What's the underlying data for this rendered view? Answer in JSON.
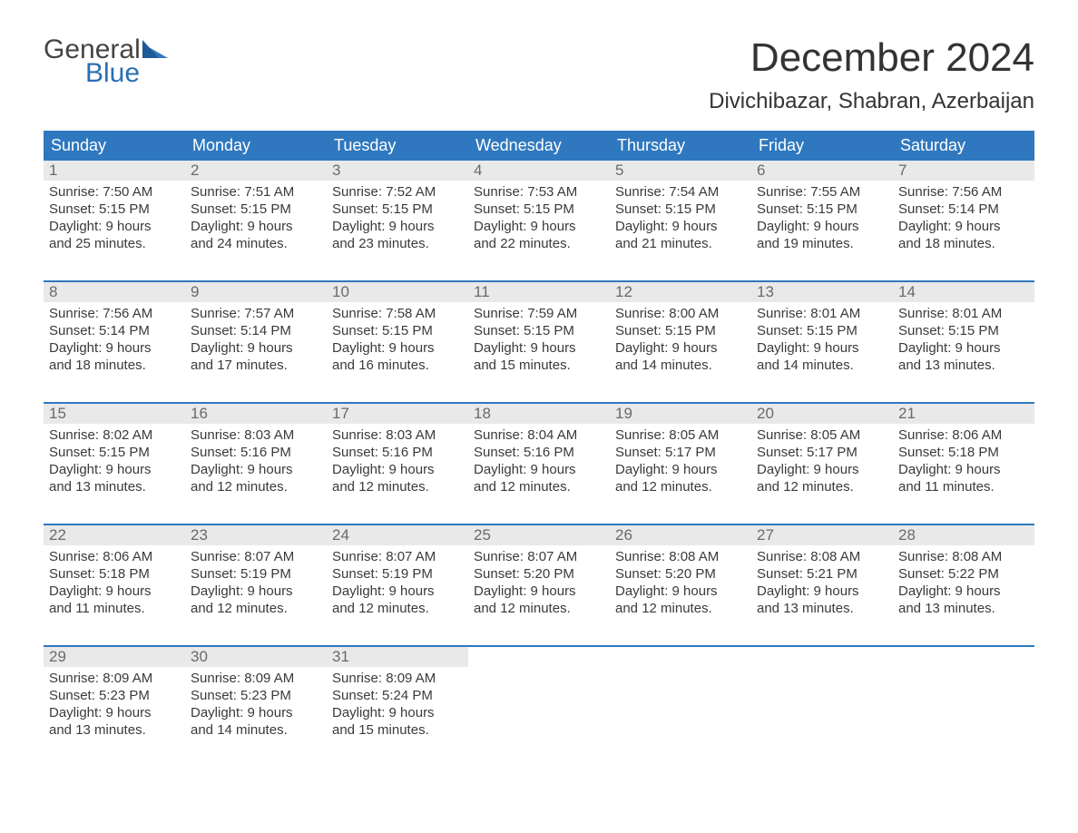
{
  "logo": {
    "word1": "General",
    "word2": "Blue",
    "icon_color": "#2f78bf",
    "text_color_word1": "#444444",
    "text_color_word2": "#2a6fb5"
  },
  "title": "December 2024",
  "location": "Divichibazar, Shabran, Azerbaijan",
  "colors": {
    "header_bg": "#2f78bf",
    "header_text": "#ffffff",
    "daynum_bg": "#e9e9e9",
    "daynum_text": "#6a6a6a",
    "body_text": "#3a3a3a",
    "week_divider": "#2f78bf",
    "page_bg": "#ffffff"
  },
  "typography": {
    "title_fontsize": 44,
    "location_fontsize": 24,
    "dow_fontsize": 18,
    "daynum_fontsize": 17,
    "body_fontsize": 15,
    "logo_fontsize": 30
  },
  "days_of_week": [
    "Sunday",
    "Monday",
    "Tuesday",
    "Wednesday",
    "Thursday",
    "Friday",
    "Saturday"
  ],
  "weeks": [
    [
      {
        "n": "1",
        "sunrise": "Sunrise: 7:50 AM",
        "sunset": "Sunset: 5:15 PM",
        "d1": "Daylight: 9 hours",
        "d2": "and 25 minutes."
      },
      {
        "n": "2",
        "sunrise": "Sunrise: 7:51 AM",
        "sunset": "Sunset: 5:15 PM",
        "d1": "Daylight: 9 hours",
        "d2": "and 24 minutes."
      },
      {
        "n": "3",
        "sunrise": "Sunrise: 7:52 AM",
        "sunset": "Sunset: 5:15 PM",
        "d1": "Daylight: 9 hours",
        "d2": "and 23 minutes."
      },
      {
        "n": "4",
        "sunrise": "Sunrise: 7:53 AM",
        "sunset": "Sunset: 5:15 PM",
        "d1": "Daylight: 9 hours",
        "d2": "and 22 minutes."
      },
      {
        "n": "5",
        "sunrise": "Sunrise: 7:54 AM",
        "sunset": "Sunset: 5:15 PM",
        "d1": "Daylight: 9 hours",
        "d2": "and 21 minutes."
      },
      {
        "n": "6",
        "sunrise": "Sunrise: 7:55 AM",
        "sunset": "Sunset: 5:15 PM",
        "d1": "Daylight: 9 hours",
        "d2": "and 19 minutes."
      },
      {
        "n": "7",
        "sunrise": "Sunrise: 7:56 AM",
        "sunset": "Sunset: 5:14 PM",
        "d1": "Daylight: 9 hours",
        "d2": "and 18 minutes."
      }
    ],
    [
      {
        "n": "8",
        "sunrise": "Sunrise: 7:56 AM",
        "sunset": "Sunset: 5:14 PM",
        "d1": "Daylight: 9 hours",
        "d2": "and 18 minutes."
      },
      {
        "n": "9",
        "sunrise": "Sunrise: 7:57 AM",
        "sunset": "Sunset: 5:14 PM",
        "d1": "Daylight: 9 hours",
        "d2": "and 17 minutes."
      },
      {
        "n": "10",
        "sunrise": "Sunrise: 7:58 AM",
        "sunset": "Sunset: 5:15 PM",
        "d1": "Daylight: 9 hours",
        "d2": "and 16 minutes."
      },
      {
        "n": "11",
        "sunrise": "Sunrise: 7:59 AM",
        "sunset": "Sunset: 5:15 PM",
        "d1": "Daylight: 9 hours",
        "d2": "and 15 minutes."
      },
      {
        "n": "12",
        "sunrise": "Sunrise: 8:00 AM",
        "sunset": "Sunset: 5:15 PM",
        "d1": "Daylight: 9 hours",
        "d2": "and 14 minutes."
      },
      {
        "n": "13",
        "sunrise": "Sunrise: 8:01 AM",
        "sunset": "Sunset: 5:15 PM",
        "d1": "Daylight: 9 hours",
        "d2": "and 14 minutes."
      },
      {
        "n": "14",
        "sunrise": "Sunrise: 8:01 AM",
        "sunset": "Sunset: 5:15 PM",
        "d1": "Daylight: 9 hours",
        "d2": "and 13 minutes."
      }
    ],
    [
      {
        "n": "15",
        "sunrise": "Sunrise: 8:02 AM",
        "sunset": "Sunset: 5:15 PM",
        "d1": "Daylight: 9 hours",
        "d2": "and 13 minutes."
      },
      {
        "n": "16",
        "sunrise": "Sunrise: 8:03 AM",
        "sunset": "Sunset: 5:16 PM",
        "d1": "Daylight: 9 hours",
        "d2": "and 12 minutes."
      },
      {
        "n": "17",
        "sunrise": "Sunrise: 8:03 AM",
        "sunset": "Sunset: 5:16 PM",
        "d1": "Daylight: 9 hours",
        "d2": "and 12 minutes."
      },
      {
        "n": "18",
        "sunrise": "Sunrise: 8:04 AM",
        "sunset": "Sunset: 5:16 PM",
        "d1": "Daylight: 9 hours",
        "d2": "and 12 minutes."
      },
      {
        "n": "19",
        "sunrise": "Sunrise: 8:05 AM",
        "sunset": "Sunset: 5:17 PM",
        "d1": "Daylight: 9 hours",
        "d2": "and 12 minutes."
      },
      {
        "n": "20",
        "sunrise": "Sunrise: 8:05 AM",
        "sunset": "Sunset: 5:17 PM",
        "d1": "Daylight: 9 hours",
        "d2": "and 12 minutes."
      },
      {
        "n": "21",
        "sunrise": "Sunrise: 8:06 AM",
        "sunset": "Sunset: 5:18 PM",
        "d1": "Daylight: 9 hours",
        "d2": "and 11 minutes."
      }
    ],
    [
      {
        "n": "22",
        "sunrise": "Sunrise: 8:06 AM",
        "sunset": "Sunset: 5:18 PM",
        "d1": "Daylight: 9 hours",
        "d2": "and 11 minutes."
      },
      {
        "n": "23",
        "sunrise": "Sunrise: 8:07 AM",
        "sunset": "Sunset: 5:19 PM",
        "d1": "Daylight: 9 hours",
        "d2": "and 12 minutes."
      },
      {
        "n": "24",
        "sunrise": "Sunrise: 8:07 AM",
        "sunset": "Sunset: 5:19 PM",
        "d1": "Daylight: 9 hours",
        "d2": "and 12 minutes."
      },
      {
        "n": "25",
        "sunrise": "Sunrise: 8:07 AM",
        "sunset": "Sunset: 5:20 PM",
        "d1": "Daylight: 9 hours",
        "d2": "and 12 minutes."
      },
      {
        "n": "26",
        "sunrise": "Sunrise: 8:08 AM",
        "sunset": "Sunset: 5:20 PM",
        "d1": "Daylight: 9 hours",
        "d2": "and 12 minutes."
      },
      {
        "n": "27",
        "sunrise": "Sunrise: 8:08 AM",
        "sunset": "Sunset: 5:21 PM",
        "d1": "Daylight: 9 hours",
        "d2": "and 13 minutes."
      },
      {
        "n": "28",
        "sunrise": "Sunrise: 8:08 AM",
        "sunset": "Sunset: 5:22 PM",
        "d1": "Daylight: 9 hours",
        "d2": "and 13 minutes."
      }
    ],
    [
      {
        "n": "29",
        "sunrise": "Sunrise: 8:09 AM",
        "sunset": "Sunset: 5:23 PM",
        "d1": "Daylight: 9 hours",
        "d2": "and 13 minutes."
      },
      {
        "n": "30",
        "sunrise": "Sunrise: 8:09 AM",
        "sunset": "Sunset: 5:23 PM",
        "d1": "Daylight: 9 hours",
        "d2": "and 14 minutes."
      },
      {
        "n": "31",
        "sunrise": "Sunrise: 8:09 AM",
        "sunset": "Sunset: 5:24 PM",
        "d1": "Daylight: 9 hours",
        "d2": "and 15 minutes."
      },
      null,
      null,
      null,
      null
    ]
  ]
}
